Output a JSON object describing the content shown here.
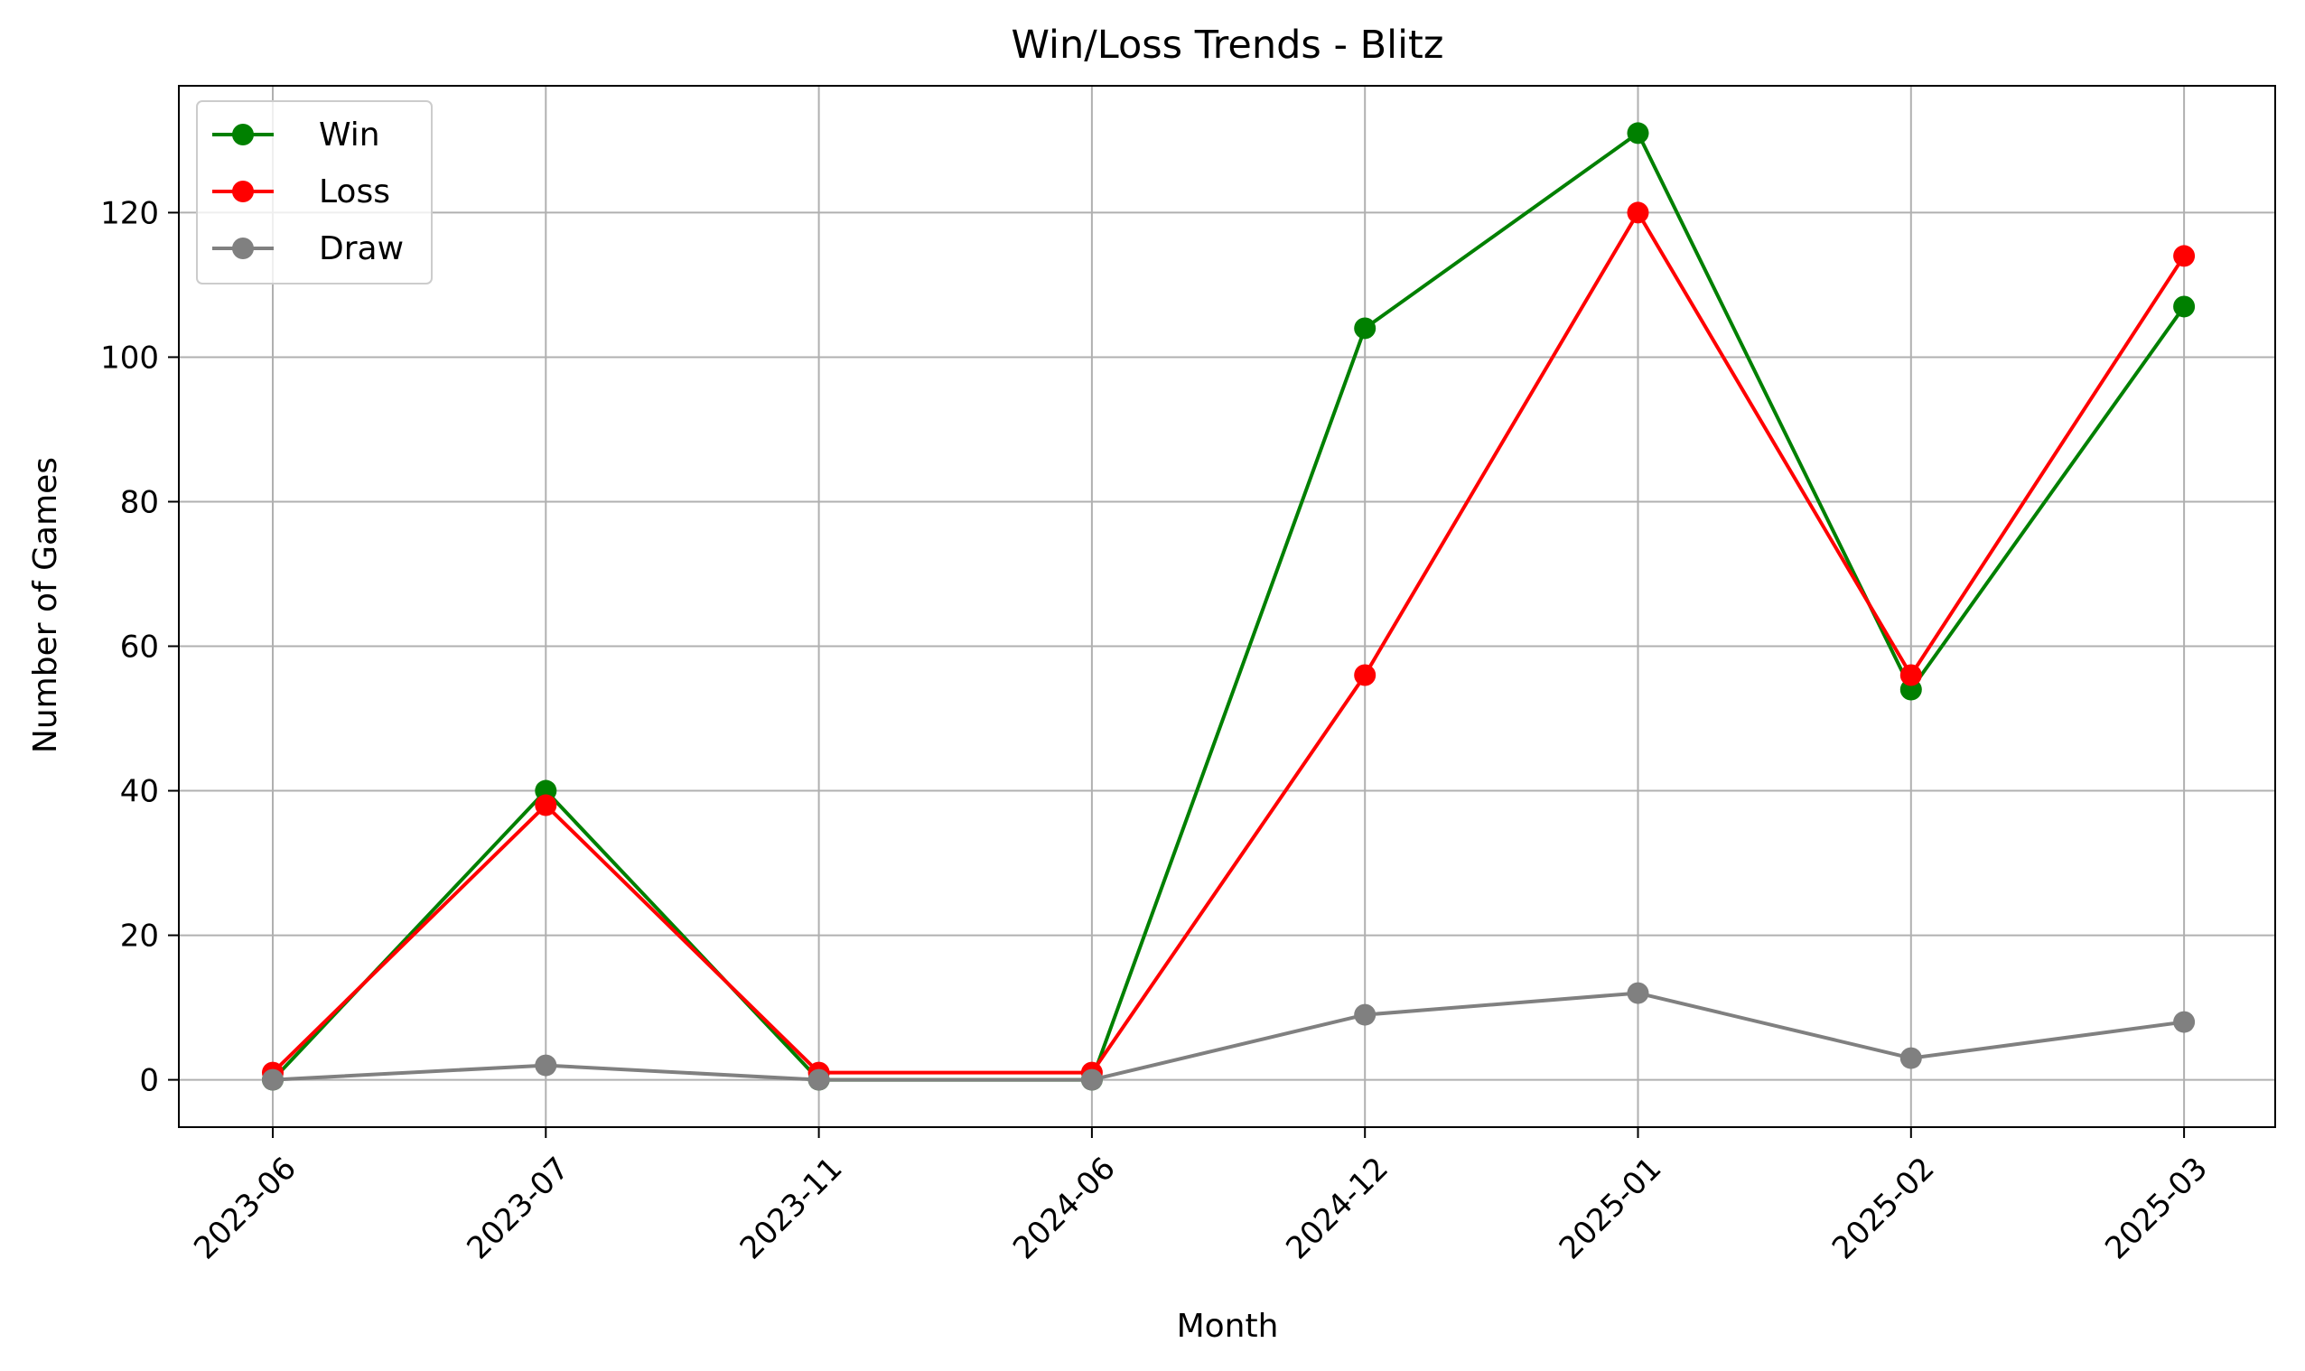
{
  "chart_data": {
    "type": "line",
    "title": "Win/Loss Trends - Blitz",
    "xlabel": "Month",
    "ylabel": "Number of Games",
    "categories": [
      "2023-06",
      "2023-07",
      "2023-11",
      "2024-06",
      "2024-12",
      "2025-01",
      "2025-02",
      "2025-03"
    ],
    "series": [
      {
        "name": "Win",
        "color": "#008000",
        "values": [
          0,
          40,
          0,
          0,
          104,
          131,
          54,
          107
        ]
      },
      {
        "name": "Loss",
        "color": "#ff0000",
        "values": [
          1,
          38,
          1,
          1,
          56,
          120,
          56,
          114
        ]
      },
      {
        "name": "Draw",
        "color": "#808080",
        "values": [
          0,
          2,
          0,
          0,
          9,
          12,
          3,
          8
        ]
      }
    ],
    "ylim": [
      -6.55,
      137.55
    ],
    "yticks": [
      0,
      20,
      40,
      60,
      80,
      100,
      120
    ],
    "grid": true,
    "legend_position": "top-left",
    "marker": "circle"
  }
}
